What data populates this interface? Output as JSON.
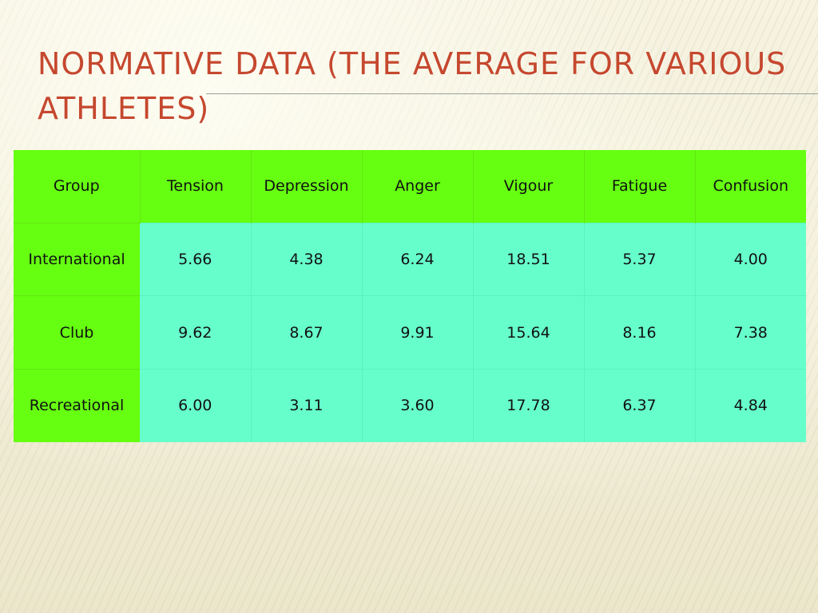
{
  "slide": {
    "title": "Normative data (the average for various athletes)"
  },
  "table": {
    "columns": [
      "Group",
      "Tension",
      "Depression",
      "Anger",
      "Vigour",
      "Fatigue",
      "Confusion"
    ],
    "rows": [
      [
        "International",
        "5.66",
        "4.38",
        "6.24",
        "18.51",
        "5.37",
        "4.00"
      ],
      [
        "Club",
        "9.62",
        "8.67",
        "9.91",
        "15.64",
        "8.16",
        "7.38"
      ],
      [
        "Recreational",
        "6.00",
        "3.11",
        "3.60",
        "17.78",
        "6.37",
        "4.84"
      ]
    ]
  },
  "colors": {
    "title": "#c5482e",
    "header_fill": "#66ff11",
    "body_fill": "#66ffcc",
    "background": "#f3f0dc"
  }
}
